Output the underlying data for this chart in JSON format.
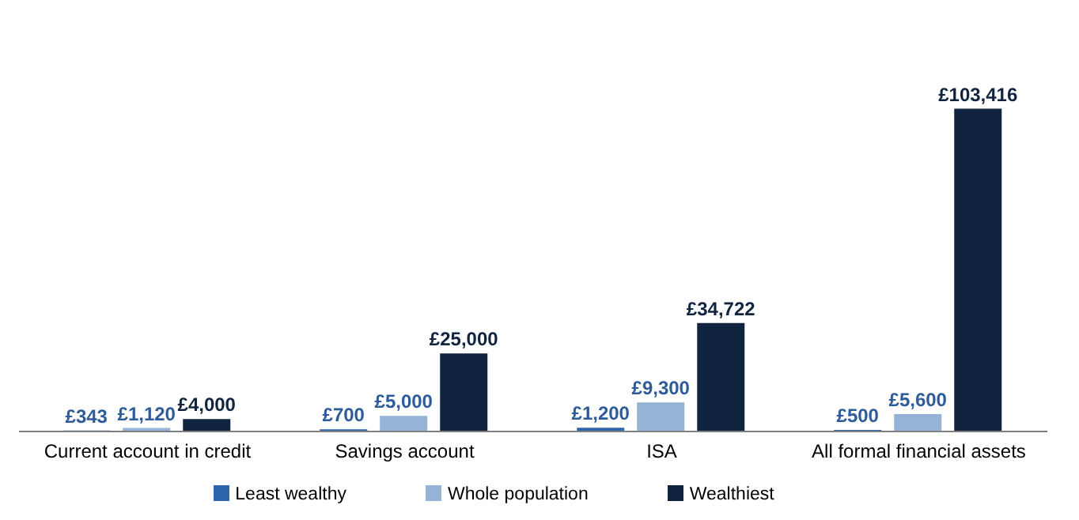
{
  "chart_data": {
    "type": "bar",
    "categories": [
      "Current account in credit",
      "Savings account",
      "ISA",
      "All formal financial assets"
    ],
    "series": [
      {
        "name": "Least wealthy",
        "color": "#2e64ab",
        "values": [
          343,
          700,
          1200,
          500
        ],
        "value_labels": [
          "£343",
          "£700",
          "£1,200",
          "£500"
        ]
      },
      {
        "name": "Whole population",
        "color": "#95b3d7",
        "values": [
          1120,
          5000,
          9300,
          5600
        ],
        "value_labels": [
          "£1,120",
          "£5,000",
          "£9,300",
          "£5,600"
        ]
      },
      {
        "name": "Wealthiest",
        "color": "#10243f",
        "values": [
          4000,
          25000,
          34722,
          103416
        ],
        "value_labels": [
          "£4,000",
          "£25,000",
          "£34,722",
          "£103,416"
        ]
      }
    ],
    "legend": "bottom"
  }
}
